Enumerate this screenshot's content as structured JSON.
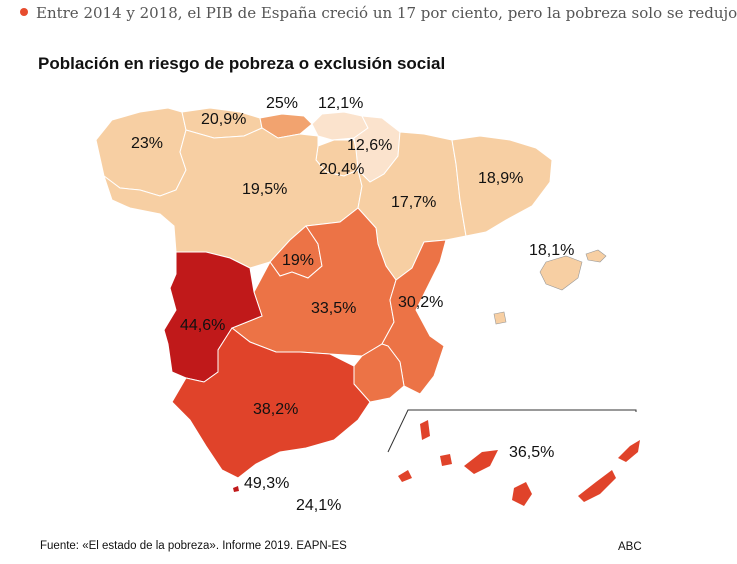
{
  "headline": {
    "text": "Entre 2014 y 2018, el PIB de España creció un 17 por ciento, pero la pobreza solo se redujo",
    "bullet_color": "#e74c2e"
  },
  "map": {
    "title": "Población en riesgo de pobreza o exclusión social",
    "source": "Fuente: «El estado de la pobreza». Informe 2019. EAPN-ES",
    "brand": "ABC",
    "colors": {
      "lowest": "#fbe3cd",
      "low": "#f7cfa3",
      "mid": "#f2a36f",
      "midhigh": "#ec7346",
      "high": "#e0432a",
      "highest": "#c0191a",
      "border": "#ffffff"
    },
    "regions": [
      {
        "name": "Galicia",
        "value": "23%"
      },
      {
        "name": "Asturias",
        "value": "20,9%"
      },
      {
        "name": "Cantabria",
        "value": "25%"
      },
      {
        "name": "País Vasco",
        "value": "12,1%"
      },
      {
        "name": "Navarra",
        "value": "12,6%"
      },
      {
        "name": "La Rioja",
        "value": "20,4%"
      },
      {
        "name": "Castilla y León",
        "value": "19,5%"
      },
      {
        "name": "Aragón",
        "value": "17,7%"
      },
      {
        "name": "Cataluña",
        "value": "18,9%"
      },
      {
        "name": "Baleares",
        "value": "18,1%"
      },
      {
        "name": "Madrid",
        "value": "19%"
      },
      {
        "name": "Extremadura",
        "value": "44,6%"
      },
      {
        "name": "Castilla-La Mancha",
        "value": "33,5%"
      },
      {
        "name": "C. Valenciana",
        "value": "30,2%"
      },
      {
        "name": "Andalucía",
        "value": "38,2%"
      },
      {
        "name": "Canarias",
        "value": "36,5%"
      },
      {
        "name": "Ceuta",
        "value": "49,3%"
      },
      {
        "name": "Melilla",
        "value": "24,1%"
      }
    ]
  }
}
